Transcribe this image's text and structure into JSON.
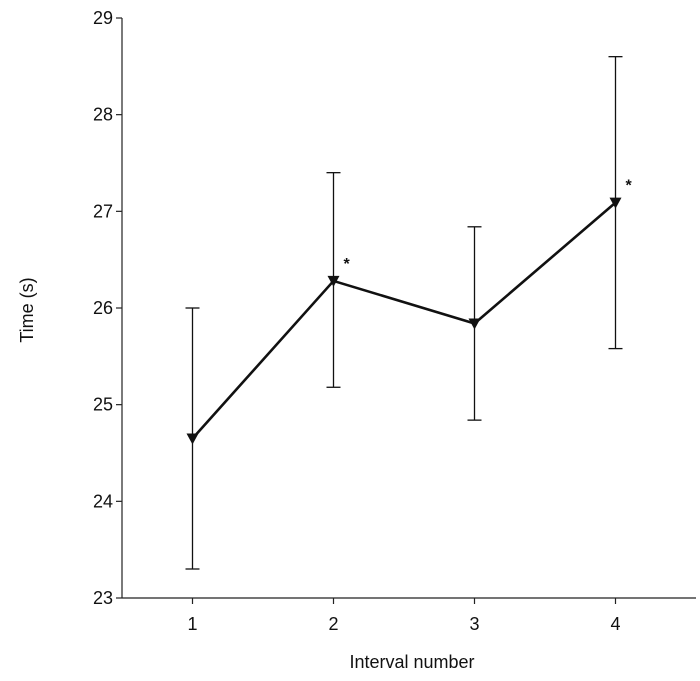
{
  "chart_data": {
    "type": "line",
    "xlabel": "Interval number",
    "ylabel": "Time (s)",
    "x": [
      1,
      2,
      3,
      4
    ],
    "xticks": [
      "1",
      "2",
      "3",
      "4"
    ],
    "xlim": [
      0.5,
      4.5
    ],
    "ylim": [
      23,
      29
    ],
    "yticks": [
      "23",
      "24",
      "25",
      "26",
      "27",
      "28",
      "29"
    ],
    "series": [
      {
        "values": [
          24.65,
          26.28,
          25.84,
          27.09
        ],
        "error_upper": [
          26.0,
          27.4,
          26.84,
          28.6
        ],
        "error_lower": [
          23.3,
          25.18,
          24.84,
          25.58
        ],
        "annotations": [
          "",
          "*",
          "",
          "*"
        ],
        "marker": "down-triangle",
        "color": "#111111"
      }
    ],
    "grid": false
  }
}
